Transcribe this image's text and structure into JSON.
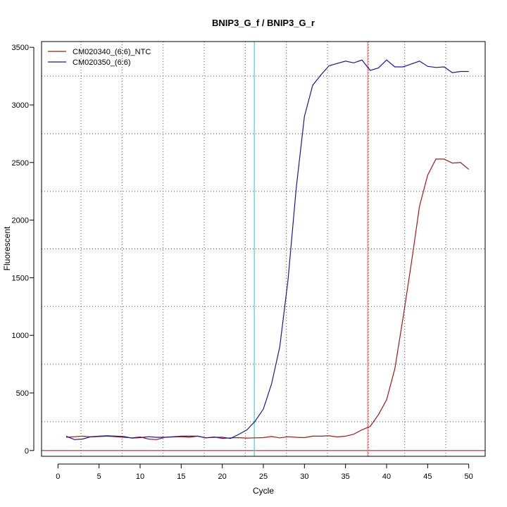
{
  "chart_data": {
    "type": "line",
    "title": "BNIP3_G_f / BNIP3_G_r",
    "xlabel": "Cycle",
    "ylabel": "Fluorescent",
    "xlim": [
      -2,
      52
    ],
    "ylim": [
      -50,
      3550
    ],
    "x_ticks": [
      0,
      5,
      10,
      15,
      20,
      25,
      30,
      35,
      40,
      45,
      50
    ],
    "y_ticks": [
      0,
      500,
      1000,
      1500,
      2000,
      2500,
      3000,
      3500
    ],
    "grid_x": [
      2.8,
      7.8,
      12.8,
      17.8,
      22.8,
      27.8,
      32.8,
      37.8,
      42.2,
      47.2
    ],
    "grid_y": [
      250,
      750,
      1250,
      1750,
      2250,
      2750,
      3250
    ],
    "legend_position": "top-left",
    "threshold_y": 0,
    "threshold_color": "#d81b1b",
    "vlines": [
      {
        "x": 23.9,
        "color": "#33d6e0"
      },
      {
        "x": 37.7,
        "color": "#f07878"
      }
    ],
    "series": [
      {
        "name": "CM020340_(6:6)_NTC",
        "color": "#9b1c1c",
        "x": [
          1,
          2,
          3,
          4,
          5,
          6,
          7,
          8,
          9,
          10,
          11,
          12,
          13,
          14,
          15,
          16,
          17,
          18,
          19,
          20,
          21,
          22,
          23,
          24,
          25,
          26,
          27,
          28,
          29,
          30,
          31,
          32,
          33,
          34,
          35,
          36,
          37,
          38,
          39,
          40,
          41,
          42,
          43,
          44,
          45,
          46,
          47,
          48,
          49,
          50
        ],
        "values": [
          115,
          120,
          125,
          118,
          122,
          125,
          120,
          115,
          110,
          118,
          100,
          95,
          115,
          118,
          120,
          115,
          125,
          110,
          118,
          105,
          110,
          112,
          108,
          110,
          112,
          122,
          110,
          120,
          115,
          112,
          125,
          125,
          128,
          118,
          125,
          142,
          180,
          210,
          310,
          440,
          710,
          1150,
          1620,
          2120,
          2390,
          2530,
          2530,
          2495,
          2500,
          2440
        ]
      },
      {
        "name": "CM020350_(6:6)",
        "color": "#1a1a8c",
        "x": [
          1,
          2,
          3,
          4,
          5,
          6,
          7,
          8,
          9,
          10,
          11,
          12,
          13,
          14,
          15,
          16,
          17,
          18,
          19,
          20,
          21,
          22,
          23,
          24,
          25,
          26,
          27,
          28,
          29,
          30,
          31,
          32,
          33,
          34,
          35,
          36,
          37,
          38,
          39,
          40,
          41,
          42,
          43,
          44,
          45,
          46,
          47,
          48,
          49,
          50
        ],
        "values": [
          125,
          95,
          100,
          120,
          125,
          128,
          125,
          122,
          108,
          112,
          120,
          115,
          115,
          120,
          125,
          125,
          125,
          110,
          115,
          115,
          105,
          140,
          180,
          255,
          360,
          580,
          900,
          1480,
          2280,
          2900,
          3170,
          3260,
          3340,
          3360,
          3380,
          3365,
          3390,
          3300,
          3320,
          3390,
          3330,
          3330,
          3355,
          3380,
          3335,
          3325,
          3330,
          3280,
          3290,
          3290
        ]
      }
    ]
  }
}
